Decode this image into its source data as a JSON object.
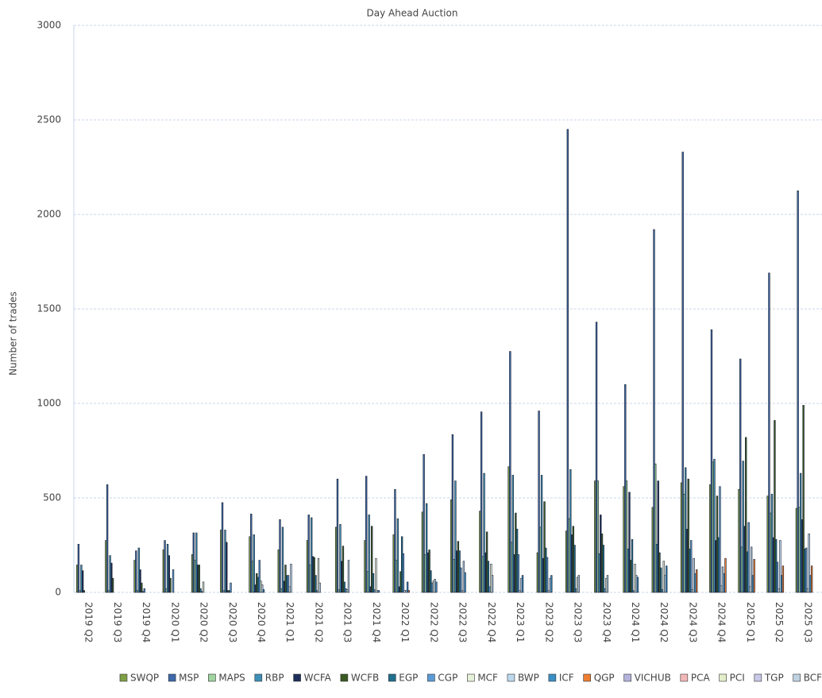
{
  "chart_data": {
    "type": "bar",
    "title": "Day Ahead Auction",
    "y_label": "Number of trades",
    "categories": [
      "2019 Q2",
      "2019 Q3",
      "2019 Q4",
      "2020 Q1",
      "2020 Q2",
      "2020 Q3",
      "2020 Q4",
      "2021 Q1",
      "2021 Q2",
      "2021 Q3",
      "2021 Q4",
      "2022 Q1",
      "2022 Q2",
      "2022 Q3",
      "2022 Q4",
      "2023 Q1",
      "2023 Q2",
      "2023 Q3",
      "2023 Q4",
      "2024 Q1",
      "2024 Q2",
      "2024 Q3",
      "2024 Q4",
      "2025 Q1",
      "2025 Q2",
      "2025 Q3"
    ],
    "series": [
      {
        "name": "SWQP",
        "color": "#7f9f46",
        "values": [
          145,
          275,
          170,
          225,
          200,
          330,
          295,
          225,
          275,
          345,
          275,
          305,
          425,
          490,
          430,
          665,
          210,
          325,
          590,
          560,
          450,
          580,
          570,
          545,
          510,
          445
        ]
      },
      {
        "name": "MSP",
        "color": "#3f69a8",
        "values": [
          255,
          570,
          220,
          275,
          315,
          475,
          415,
          385,
          410,
          600,
          615,
          545,
          730,
          835,
          955,
          1275,
          960,
          2450,
          1430,
          1100,
          1920,
          2330,
          1390,
          1235,
          1690,
          2125
        ]
      },
      {
        "name": "MAPS",
        "color": "#9fd39f",
        "values": [
          10,
          10,
          10,
          20,
          170,
          10,
          165,
          20,
          145,
          15,
          110,
          170,
          200,
          175,
          190,
          265,
          345,
          390,
          590,
          590,
          680,
          520,
          690,
          240,
          420,
          450
        ]
      },
      {
        "name": "RBP",
        "color": "#3d8fb5",
        "values": [
          145,
          195,
          235,
          255,
          315,
          330,
          305,
          345,
          395,
          360,
          410,
          390,
          470,
          590,
          630,
          620,
          620,
          650,
          205,
          230,
          255,
          660,
          705,
          695,
          520,
          630
        ]
      },
      {
        "name": "WCFA",
        "color": "#1f2f5a",
        "values": [
          115,
          155,
          120,
          195,
          145,
          265,
          40,
          60,
          190,
          165,
          30,
          30,
          210,
          220,
          210,
          200,
          180,
          305,
          410,
          530,
          590,
          335,
          275,
          350,
          290,
          385
        ]
      },
      {
        "name": "WCFB",
        "color": "#3a5a22",
        "values": [
          10,
          75,
          50,
          75,
          145,
          10,
          100,
          145,
          185,
          245,
          350,
          110,
          225,
          270,
          320,
          420,
          480,
          350,
          310,
          170,
          210,
          600,
          510,
          820,
          910,
          990
        ]
      },
      {
        "name": "EGP",
        "color": "#1f6f8c",
        "values": [
          0,
          0,
          5,
          0,
          20,
          10,
          80,
          90,
          90,
          55,
          100,
          295,
          115,
          220,
          165,
          335,
          235,
          250,
          250,
          280,
          130,
          230,
          290,
          215,
          280,
          230
        ]
      },
      {
        "name": "CGP",
        "color": "#5b9bd5",
        "values": [
          0,
          0,
          20,
          120,
          5,
          50,
          170,
          90,
          10,
          20,
          15,
          205,
          50,
          130,
          30,
          200,
          185,
          20,
          20,
          10,
          15,
          275,
          560,
          370,
          160,
          235
        ]
      },
      {
        "name": "MCF",
        "color": "#e4f0d8",
        "values": [
          0,
          0,
          0,
          0,
          55,
          0,
          60,
          30,
          180,
          15,
          180,
          10,
          60,
          10,
          150,
          10,
          10,
          80,
          75,
          150,
          165,
          15,
          35,
          30,
          20,
          20
        ]
      },
      {
        "name": "BWP",
        "color": "#bcd8ee",
        "values": [
          0,
          0,
          0,
          0,
          0,
          0,
          40,
          150,
          50,
          170,
          10,
          10,
          70,
          165,
          90,
          75,
          75,
          90,
          90,
          90,
          90,
          180,
          135,
          240,
          275,
          310
        ]
      },
      {
        "name": "ICF",
        "color": "#3a8fc4",
        "values": [
          0,
          0,
          0,
          0,
          0,
          0,
          15,
          0,
          0,
          0,
          10,
          55,
          55,
          105,
          0,
          90,
          90,
          0,
          0,
          80,
          140,
          100,
          100,
          90,
          90,
          90
        ]
      },
      {
        "name": "QGP",
        "color": "#ed7d31",
        "values": [
          0,
          0,
          0,
          0,
          0,
          0,
          0,
          0,
          0,
          0,
          0,
          10,
          0,
          0,
          0,
          0,
          0,
          0,
          0,
          0,
          0,
          120,
          180,
          175,
          140,
          140
        ]
      },
      {
        "name": "VICHUB",
        "color": "#b3b3dc",
        "values": [
          0,
          0,
          0,
          0,
          0,
          0,
          0,
          0,
          0,
          0,
          0,
          0,
          0,
          0,
          0,
          0,
          0,
          0,
          0,
          0,
          0,
          0,
          0,
          0,
          0,
          0
        ]
      },
      {
        "name": "PCA",
        "color": "#f2b8b8",
        "values": [
          0,
          0,
          0,
          0,
          0,
          0,
          0,
          0,
          0,
          0,
          0,
          0,
          0,
          0,
          0,
          0,
          0,
          0,
          0,
          0,
          0,
          0,
          0,
          0,
          0,
          0
        ]
      },
      {
        "name": "PCI",
        "color": "#e3efca",
        "values": [
          0,
          0,
          0,
          0,
          0,
          0,
          0,
          0,
          0,
          0,
          0,
          0,
          0,
          0,
          0,
          0,
          0,
          0,
          0,
          0,
          0,
          0,
          0,
          0,
          0,
          0
        ]
      },
      {
        "name": "TGP",
        "color": "#c8c8e8",
        "values": [
          0,
          0,
          0,
          0,
          0,
          0,
          0,
          0,
          0,
          0,
          0,
          0,
          0,
          0,
          0,
          0,
          0,
          0,
          0,
          0,
          0,
          0,
          0,
          0,
          0,
          0
        ]
      },
      {
        "name": "BCF",
        "color": "#bfd2e2",
        "values": [
          0,
          0,
          0,
          0,
          0,
          0,
          0,
          0,
          0,
          0,
          0,
          0,
          0,
          0,
          0,
          0,
          0,
          0,
          0,
          0,
          0,
          0,
          0,
          0,
          0,
          0
        ]
      }
    ],
    "ylim": [
      0,
      3000
    ],
    "yticks": [
      0,
      500,
      1000,
      1500,
      2000,
      2500,
      3000
    ],
    "grid": true,
    "legend": "bottom"
  }
}
